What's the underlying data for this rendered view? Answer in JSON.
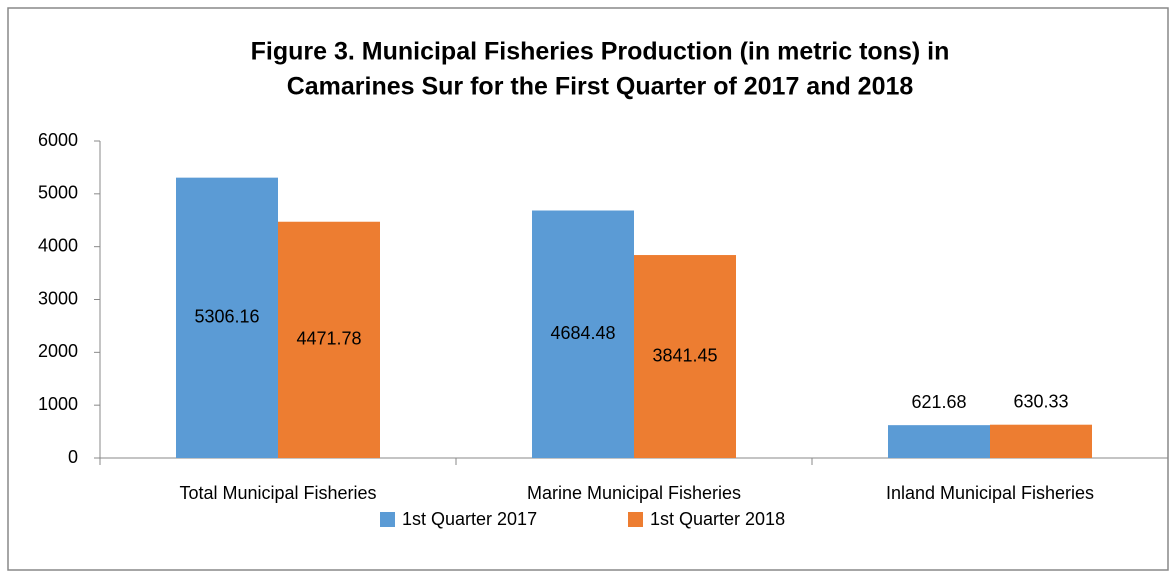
{
  "chart_data": {
    "type": "bar",
    "title": [
      "Figure 3.  Municipal Fisheries Production (in metric tons) in",
      "Camarines Sur for the First Quarter of  2017 and 2018"
    ],
    "categories": [
      "Total Municipal Fisheries",
      "Marine Municipal Fisheries",
      "Inland Municipal Fisheries"
    ],
    "series": [
      {
        "name": "1st Quarter 2017",
        "color": "#5b9bd5",
        "values": [
          5306.16,
          4684.48,
          621.68
        ]
      },
      {
        "name": "1st Quarter 2018",
        "color": "#ed7d31",
        "values": [
          4471.78,
          3841.45,
          630.33
        ]
      }
    ],
    "ylim": [
      0,
      6000
    ],
    "yticks": [
      0,
      1000,
      2000,
      3000,
      4000,
      5000,
      6000
    ],
    "grid": false,
    "legend": "bottom"
  }
}
